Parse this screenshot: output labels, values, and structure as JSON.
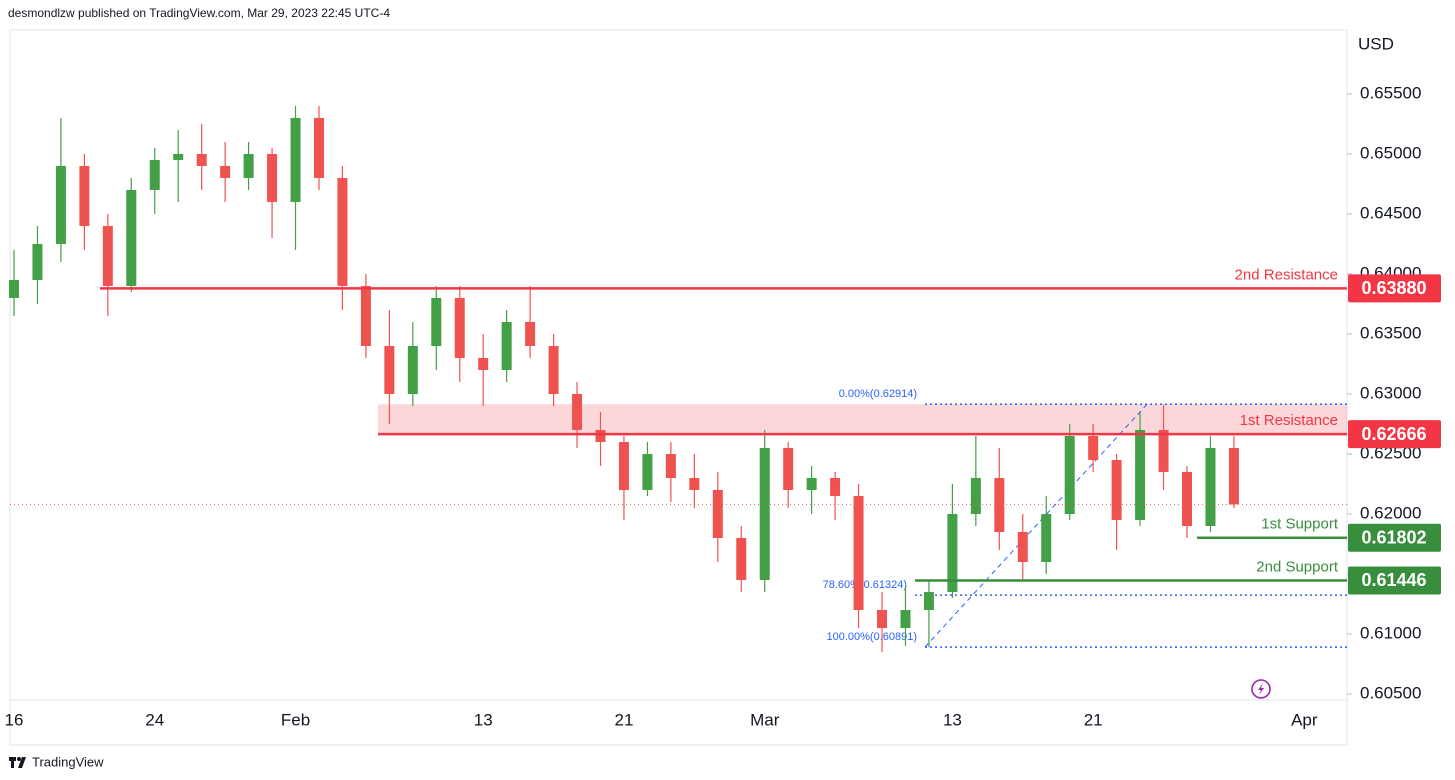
{
  "header": {
    "byline": "desmondlzw published on TradingView.com, Mar 29, 2023 22:45 UTC-4"
  },
  "footer": {
    "brand": "TradingView"
  },
  "chart_data": {
    "type": "candlestick",
    "currency": "USD",
    "categories": [
      "16",
      null,
      null,
      null,
      null,
      null,
      "24",
      null,
      null,
      null,
      null,
      null,
      "Feb",
      null,
      null,
      null,
      null,
      null,
      null,
      null,
      "13",
      null,
      null,
      null,
      null,
      null,
      "21",
      null,
      null,
      null,
      null,
      null,
      "Mar",
      null,
      null,
      null,
      null,
      null,
      null,
      null,
      "13",
      null,
      null,
      null,
      null,
      null,
      "21",
      null,
      null,
      null,
      null,
      null,
      null,
      null,
      null,
      "Apr",
      null
    ],
    "open": [
      0.638,
      0.6395,
      0.6425,
      0.649,
      0.644,
      0.639,
      0.647,
      0.6495,
      0.65,
      0.649,
      0.648,
      0.65,
      0.646,
      0.653,
      0.648,
      0.639,
      0.634,
      0.63,
      0.634,
      0.638,
      0.633,
      0.632,
      0.636,
      0.634,
      0.63,
      0.627,
      0.626,
      0.622,
      0.625,
      0.623,
      0.622,
      0.618,
      0.6145,
      0.6255,
      0.622,
      0.623,
      0.6215,
      0.612,
      0.6105,
      0.612,
      0.6135,
      0.62,
      0.623,
      0.6185,
      0.616,
      0.62,
      0.6265,
      0.6245,
      0.6195,
      0.627,
      0.6235,
      0.619,
      0.6255,
      null,
      null,
      null,
      null
    ],
    "high": [
      0.642,
      0.644,
      0.653,
      0.65,
      0.645,
      0.648,
      0.6505,
      0.652,
      0.6525,
      0.651,
      0.651,
      0.6505,
      0.654,
      0.654,
      0.649,
      0.64,
      0.637,
      0.636,
      0.639,
      0.639,
      0.635,
      0.637,
      0.639,
      0.635,
      0.631,
      0.6285,
      0.6265,
      0.626,
      0.626,
      0.625,
      0.6235,
      0.619,
      0.627,
      0.626,
      0.624,
      0.6235,
      0.6225,
      0.6135,
      0.614,
      0.6145,
      0.6225,
      0.6265,
      0.6255,
      0.62,
      0.6215,
      0.6275,
      0.6275,
      0.625,
      0.6285,
      0.6291,
      0.624,
      0.6265,
      0.6265,
      null,
      null,
      null,
      null
    ],
    "low": [
      0.6365,
      0.6375,
      0.641,
      0.642,
      0.6365,
      0.6385,
      0.645,
      0.646,
      0.647,
      0.646,
      0.647,
      0.643,
      0.642,
      0.647,
      0.637,
      0.633,
      0.6275,
      0.629,
      0.632,
      0.631,
      0.629,
      0.631,
      0.633,
      0.629,
      0.6255,
      0.624,
      0.6195,
      0.6215,
      0.621,
      0.6205,
      0.616,
      0.6135,
      0.6135,
      0.6205,
      0.62,
      0.6195,
      0.6105,
      0.6085,
      0.609,
      0.6089,
      0.613,
      0.619,
      0.617,
      0.6145,
      0.615,
      0.6195,
      0.6235,
      0.617,
      0.619,
      0.622,
      0.618,
      0.6185,
      0.6205,
      null,
      null,
      null,
      null
    ],
    "close": [
      0.6395,
      0.6425,
      0.649,
      0.644,
      0.639,
      0.647,
      0.6495,
      0.65,
      0.649,
      0.648,
      0.65,
      0.646,
      0.653,
      0.648,
      0.639,
      0.634,
      0.63,
      0.634,
      0.638,
      0.633,
      0.632,
      0.636,
      0.634,
      0.63,
      0.627,
      0.626,
      0.622,
      0.625,
      0.623,
      0.622,
      0.618,
      0.6145,
      0.6255,
      0.622,
      0.623,
      0.6215,
      0.612,
      0.6105,
      0.612,
      0.6135,
      0.62,
      0.623,
      0.6185,
      0.616,
      0.62,
      0.6265,
      0.6245,
      0.6195,
      0.627,
      0.6235,
      0.619,
      0.6255,
      0.6208,
      null,
      null,
      null,
      null
    ],
    "up_color": "#43a047",
    "down_color": "#ef5350",
    "ylim": [
      0.6045,
      0.66033
    ],
    "yticks": [
      {
        "value": 0.605,
        "label": "0.60500"
      },
      {
        "value": 0.61,
        "label": "0.61000"
      },
      {
        "value": 0.615,
        "label": "0.61500"
      },
      {
        "value": 0.62,
        "label": "0.62000"
      },
      {
        "value": 0.625,
        "label": "0.62500"
      },
      {
        "value": 0.63,
        "label": "0.63000"
      },
      {
        "value": 0.635,
        "label": "0.63500"
      },
      {
        "value": 0.64,
        "label": "0.64000"
      },
      {
        "value": 0.645,
        "label": "0.64500"
      },
      {
        "value": 0.65,
        "label": "0.65000"
      },
      {
        "value": 0.655,
        "label": "0.65500"
      }
    ],
    "levels": [
      {
        "name": "2nd Resistance",
        "value": 0.6388,
        "label": "0.63880",
        "color": "#f23645"
      },
      {
        "name": "1st Resistance",
        "value": 0.62666,
        "label": "0.62666",
        "color": "#f23645"
      },
      {
        "name": "1st Support",
        "value": 0.61802,
        "label": "0.61802",
        "color": "#388e3c"
      },
      {
        "name": "2nd Support",
        "value": 0.61446,
        "label": "0.61446",
        "color": "#388e3c"
      }
    ],
    "resistance_zone": [
      0.62666,
      0.62914
    ],
    "fib_levels": [
      {
        "label": "0.00%(0.62914)",
        "value": 0.62914
      },
      {
        "label": "78.60%(0.61324)",
        "value": 0.61324
      },
      {
        "label": "100.00%(0.60891)",
        "value": 0.60891
      }
    ]
  }
}
